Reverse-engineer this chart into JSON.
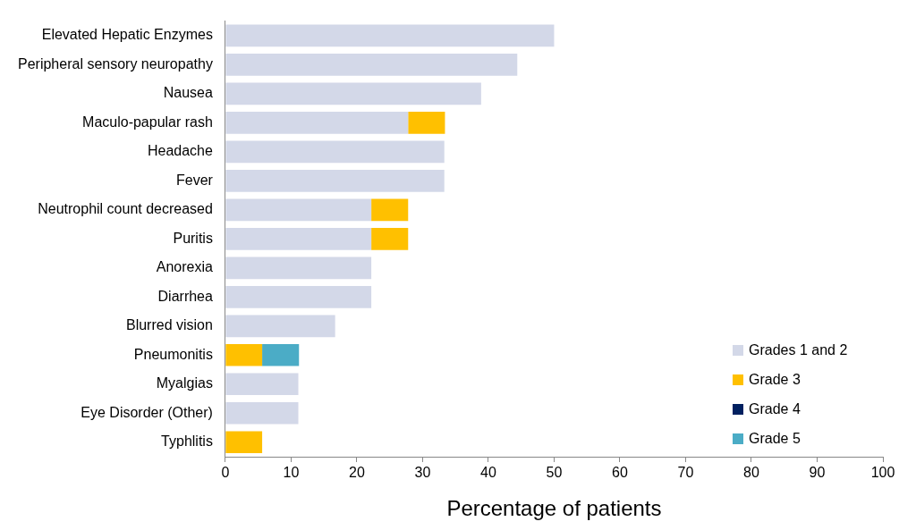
{
  "chart_data": {
    "type": "bar",
    "orientation": "horizontal",
    "stacked": true,
    "xlabel": "Percentage of patients",
    "categories": [
      "Elevated Hepatic Enzymes",
      "Peripheral sensory neuropathy",
      "Nausea",
      "Maculo-papular rash",
      "Headache",
      "Fever",
      "Neutrophil count decreased",
      "Puritis",
      "Anorexia",
      "Diarrhea",
      "Blurred vision",
      "Pneumonitis",
      "Myalgias",
      "Eye Disorder (Other)",
      "Typhlitis"
    ],
    "series": [
      {
        "name": "Grades 1 and 2",
        "color": "#d3d8e8",
        "values": [
          50,
          44.4,
          38.9,
          27.8,
          33.3,
          33.3,
          22.2,
          22.2,
          22.2,
          22.2,
          16.7,
          0,
          11.1,
          11.1,
          0
        ]
      },
      {
        "name": "Grade 3",
        "color": "#ffc000",
        "values": [
          0,
          0,
          0,
          5.6,
          0,
          0,
          5.6,
          5.6,
          0,
          0,
          0,
          5.6,
          0,
          0,
          5.6
        ]
      },
      {
        "name": "Grade 4",
        "color": "#002060",
        "values": [
          0,
          0,
          0,
          0,
          0,
          0,
          0,
          0,
          0,
          0,
          0,
          0,
          0,
          0,
          0
        ]
      },
      {
        "name": "Grade 5",
        "color": "#4bacc6",
        "values": [
          0,
          0,
          0,
          0,
          0,
          0,
          0,
          0,
          0,
          0,
          0,
          5.6,
          0,
          0,
          0
        ]
      }
    ],
    "xlim": [
      0,
      100
    ],
    "xticks": [
      0,
      10,
      20,
      30,
      40,
      50,
      60,
      70,
      80,
      90,
      100
    ],
    "legend": "bottom right"
  }
}
